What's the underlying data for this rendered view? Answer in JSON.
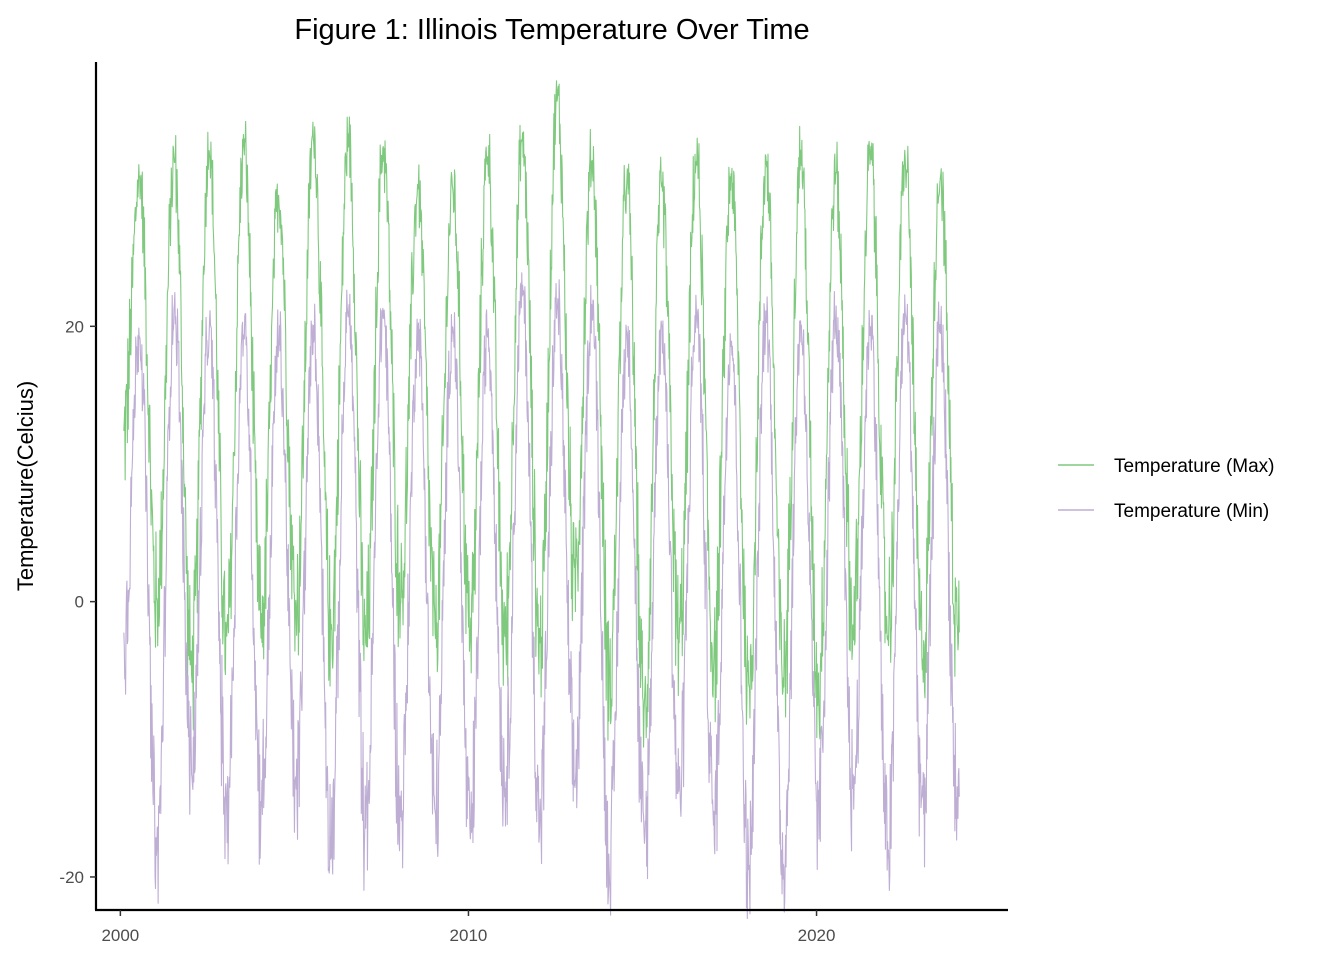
{
  "chart_data": {
    "type": "line",
    "title": "Figure 1: Illinois Temperature Over Time",
    "xlabel": "",
    "ylabel": "Temperature(Celcius)",
    "xlim": [
      1999.3,
      2025.5
    ],
    "ylim": [
      -22.4,
      39.2
    ],
    "x_ticks": [
      2000,
      2010,
      2020
    ],
    "x_tick_labels": [
      "2000",
      "2010",
      "2020"
    ],
    "y_ticks": [
      -20,
      0,
      20
    ],
    "y_tick_labels": [
      "-20",
      "0",
      "20"
    ],
    "grid": false,
    "legend_position": "right",
    "series": [
      {
        "name": "Temperature (Max)",
        "color": "#7fc97f",
        "x_start": 2000.1,
        "x_end": 2024.1,
        "summer_peaks": [
          30.8,
          32.0,
          32.8,
          33.0,
          29.5,
          33.8,
          33.5,
          33.0,
          30.0,
          30.0,
          32.5,
          33.5,
          36.5,
          32.0,
          30.5,
          30.0,
          32.0,
          31.0,
          32.0,
          32.5,
          31.0,
          32.5,
          32.0,
          31.0,
          32.5
        ],
        "winter_troughs": [
          0.0,
          -5.0,
          -3.0,
          -1.5,
          -0.5,
          -2.0,
          -3.0,
          0.5,
          -2.0,
          -2.0,
          -2.5,
          -3.0,
          2.0,
          -5.5,
          -8.0,
          -3.0,
          -4.0,
          -6.0,
          -5.5,
          -6.0,
          -2.0,
          -2.0,
          -4.0,
          -2.0
        ]
      },
      {
        "name": "Temperature (Min)",
        "color": "#beaed4",
        "x_start": 2000.1,
        "x_end": 2024.1,
        "summer_peaks": [
          19.5,
          21.5,
          19.5,
          19.5,
          19.0,
          19.5,
          21.0,
          21.0,
          19.5,
          20.0,
          19.5,
          22.5,
          21.5,
          21.5,
          19.5,
          20.0,
          21.0,
          19.0,
          21.0,
          20.0,
          20.5,
          20.0,
          21.0,
          20.0,
          19.5
        ],
        "winter_troughs": [
          -18.0,
          -12.0,
          -15.0,
          -14.5,
          -13.5,
          -17.0,
          -16.0,
          -15.5,
          -15.5,
          -17.0,
          -13.5,
          -15.5,
          -13.0,
          -19.0,
          -17.5,
          -13.5,
          -15.5,
          -19.5,
          -19.0,
          -15.0,
          -13.5,
          -18.0,
          -14.5,
          -14.5
        ]
      }
    ]
  }
}
